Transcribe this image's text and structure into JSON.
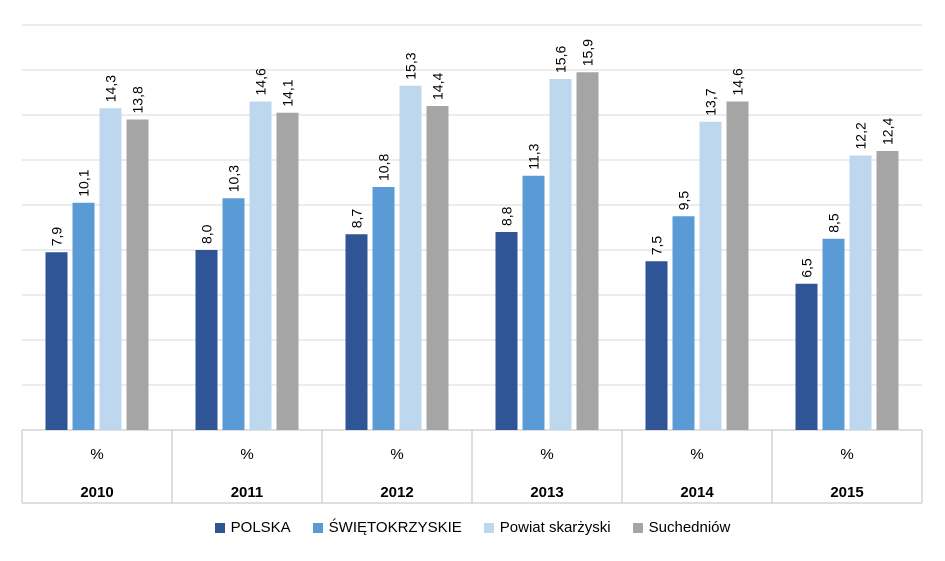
{
  "chart_data": {
    "type": "bar",
    "categories": [
      "2010",
      "2011",
      "2012",
      "2013",
      "2014",
      "2015"
    ],
    "unit_row": [
      "%",
      "%",
      "%",
      "%",
      "%",
      "%"
    ],
    "series": [
      {
        "name": "POLSKA",
        "color": "#2f5597",
        "values": [
          7.9,
          8.0,
          8.7,
          8.8,
          7.5,
          6.5
        ],
        "labels": [
          "7,9",
          "8,0",
          "8,7",
          "8,8",
          "7,5",
          "6,5"
        ]
      },
      {
        "name": "ŚWIĘTOKRZYSKIE",
        "color": "#5b9bd5",
        "values": [
          10.1,
          10.3,
          10.8,
          11.3,
          9.5,
          8.5
        ],
        "labels": [
          "10,1",
          "10,3",
          "10,8",
          "11,3",
          "9,5",
          "8,5"
        ]
      },
      {
        "name": "Powiat skarżyski",
        "color": "#bdd7ee",
        "values": [
          14.3,
          14.6,
          15.3,
          15.6,
          13.7,
          12.2
        ],
        "labels": [
          "14,3",
          "14,6",
          "15,3",
          "15,6",
          "13,7",
          "12,2"
        ]
      },
      {
        "name": "Suchedniów",
        "color": "#a5a5a5",
        "values": [
          13.8,
          14.1,
          14.4,
          15.9,
          14.6,
          12.4
        ],
        "labels": [
          "13,8",
          "14,1",
          "14,4",
          "15,9",
          "14,6",
          "12,4"
        ]
      }
    ],
    "ylim": [
      0,
      18
    ],
    "gridline_step": 2,
    "grid": true,
    "legend_position": "bottom",
    "data_labels": "vertical, above bars"
  }
}
